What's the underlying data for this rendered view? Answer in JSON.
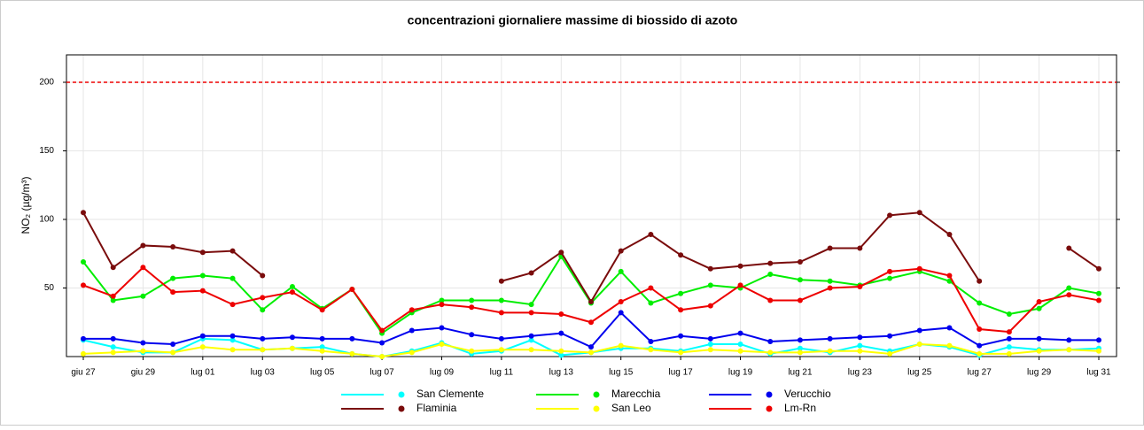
{
  "chart_data": {
    "type": "line",
    "title": "concentrazioni giornaliere massime di biossido di azoto",
    "y_label": "NO₂ (µg/m³)",
    "categories": [
      "giu 27",
      null,
      "giu 29",
      null,
      "lug 01",
      null,
      "lug 03",
      null,
      "lug 05",
      null,
      "lug 07",
      null,
      "lug 09",
      null,
      "lug 11",
      null,
      "lug 13",
      null,
      "lug 15",
      null,
      "lug 17",
      null,
      "lug 19",
      null,
      "lug 21",
      null,
      "lug 23",
      null,
      "lug 25",
      null,
      "lug 27",
      null,
      "lug 29",
      null,
      "lug 31"
    ],
    "series": [
      {
        "name": "San Clemente",
        "color": "#00ffff",
        "values": [
          12,
          7,
          3,
          3,
          13,
          12,
          5,
          6,
          7,
          2,
          0,
          4,
          10,
          2,
          4,
          12,
          1,
          3,
          6,
          6,
          4,
          9,
          9,
          2,
          6,
          3,
          8,
          4,
          9,
          7,
          1,
          7,
          5,
          5,
          6
        ]
      },
      {
        "name": "Marecchia",
        "color": "#00ee00",
        "values": [
          69,
          41,
          44,
          57,
          59,
          57,
          34,
          51,
          35,
          49,
          17,
          32,
          41,
          41,
          41,
          38,
          73,
          39,
          62,
          39,
          46,
          52,
          50,
          60,
          56,
          55,
          52,
          57,
          62,
          55,
          39,
          31,
          35,
          50,
          46
        ]
      },
      {
        "name": "Verucchio",
        "color": "#0000ee",
        "values": [
          13,
          13,
          10,
          9,
          15,
          15,
          13,
          14,
          13,
          13,
          10,
          19,
          21,
          16,
          13,
          15,
          17,
          7,
          32,
          11,
          15,
          13,
          17,
          11,
          12,
          13,
          14,
          15,
          19,
          21,
          8,
          13,
          13,
          12,
          12
        ]
      },
      {
        "name": "Flaminia",
        "color": "#7a0c0c",
        "values": [
          105,
          65,
          81,
          80,
          76,
          77,
          59,
          null,
          null,
          null,
          null,
          null,
          null,
          null,
          55,
          61,
          76,
          40,
          77,
          89,
          74,
          64,
          66,
          68,
          69,
          79,
          79,
          103,
          105,
          89,
          55,
          null,
          null,
          79,
          64
        ]
      },
      {
        "name": "San Leo",
        "color": "#ffff00",
        "values": [
          2,
          3,
          4,
          3,
          7,
          5,
          5,
          6,
          4,
          2,
          0,
          3,
          9,
          4,
          5,
          5,
          4,
          3,
          8,
          5,
          3,
          5,
          4,
          3,
          3,
          4,
          4,
          2,
          9,
          8,
          2,
          2,
          4,
          5,
          4
        ]
      },
      {
        "name": "Lm-Rn",
        "color": "#ee0000",
        "values": [
          52,
          44,
          65,
          47,
          48,
          38,
          43,
          47,
          34,
          49,
          19,
          34,
          38,
          36,
          32,
          32,
          31,
          25,
          40,
          50,
          34,
          37,
          52,
          41,
          41,
          50,
          51,
          62,
          64,
          59,
          20,
          18,
          40,
          45,
          41
        ]
      }
    ],
    "ylim": [
      0,
      220
    ],
    "yticks": [
      50,
      100,
      150,
      200
    ],
    "grid": true,
    "reference_line": {
      "value": 200,
      "color": "#ee0000"
    }
  }
}
